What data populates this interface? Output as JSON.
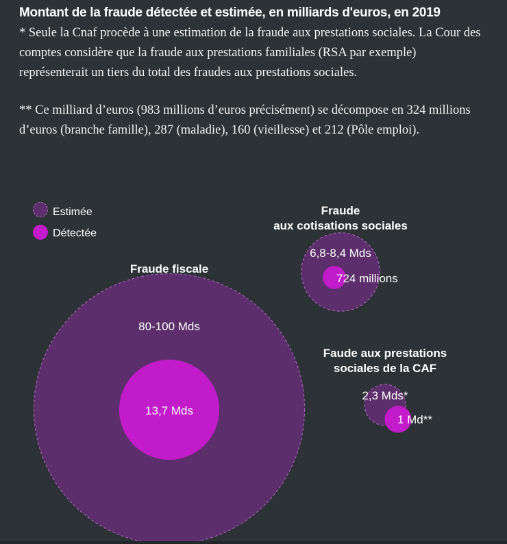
{
  "header": {
    "title": "Montant de la fraude détectée et estimée, en milliards d'euros, en 2019",
    "note1": "* Seule la Cnaf procède à une estimation de la fraude aux prestations sociales. La Cour des comptes considère que la fraude aux prestations familiales (RSA par exemple) représenterait un tiers du total des fraudes aux prestations sociales.",
    "note2": "** Ce milliard d’euros (983 millions d’euros précisément) se décompose en 324 millions d’euros (branche famille), 287 (maladie), 160 (vieillesse) et 212 (Pôle emploi)."
  },
  "colors": {
    "background": "#2c3236",
    "estimated_fill": "#5c2e6b",
    "estimated_stroke": "#a35fb5",
    "detected_fill": "#c21bc9"
  },
  "chart_data": {
    "type": "bubble",
    "unit": "milliards d'euros",
    "legend": [
      {
        "key": "estimated",
        "label": "Estimée"
      },
      {
        "key": "detected",
        "label": "Détectée"
      }
    ],
    "groups": [
      {
        "id": "fiscale",
        "title_lines": [
          "Fraude fiscale"
        ],
        "estimated": {
          "low": 80,
          "high": 100,
          "label": "80-100 Mds"
        },
        "detected": {
          "value": 13.7,
          "label": "13,7 Mds"
        }
      },
      {
        "id": "cotisations",
        "title_lines": [
          "Fraude",
          "aux cotisations sociales"
        ],
        "estimated": {
          "low": 6.8,
          "high": 8.4,
          "label": "6,8-8,4 Mds"
        },
        "detected": {
          "value": 0.724,
          "label": "724 millions"
        }
      },
      {
        "id": "caf",
        "title_lines": [
          "Faude aux prestations",
          "sociales de la CAF"
        ],
        "estimated": {
          "value": 2.3,
          "label": "2,3 Mds*"
        },
        "detected": {
          "value": 0.983,
          "label": "1 Md**"
        }
      }
    ]
  }
}
